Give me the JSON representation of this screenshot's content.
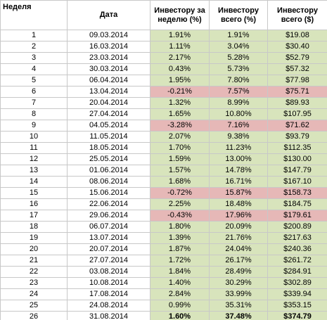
{
  "table": {
    "header": [
      "Неделя",
      "Дата",
      "Инвестору за неделю (%)",
      "Инвестору всего (%)",
      "Инвестору всего ($)"
    ],
    "rows": [
      [
        "1",
        "09.03.2014",
        "1.91%",
        "1.91%",
        "$19.08"
      ],
      [
        "2",
        "16.03.2014",
        "1.11%",
        "3.04%",
        "$30.40"
      ],
      [
        "3",
        "23.03.2014",
        "2.17%",
        "5.28%",
        "$52.79"
      ],
      [
        "4",
        "30.03.2014",
        "0.43%",
        "5.73%",
        "$57.32"
      ],
      [
        "5",
        "06.04.2014",
        "1.95%",
        "7.80%",
        "$77.98"
      ],
      [
        "6",
        "13.04.2014",
        "-0.21%",
        "7.57%",
        "$75.71"
      ],
      [
        "7",
        "20.04.2014",
        "1.32%",
        "8.99%",
        "$89.93"
      ],
      [
        "8",
        "27.04.2014",
        "1.65%",
        "10.80%",
        "$107.95"
      ],
      [
        "9",
        "04.05.2014",
        "-3.28%",
        "7.16%",
        "$71.62"
      ],
      [
        "10",
        "11.05.2014",
        "2.07%",
        "9.38%",
        "$93.79"
      ],
      [
        "11",
        "18.05.2014",
        "1.70%",
        "11.23%",
        "$112.35"
      ],
      [
        "12",
        "25.05.2014",
        "1.59%",
        "13.00%",
        "$130.00"
      ],
      [
        "13",
        "01.06.2014",
        "1.57%",
        "14.78%",
        "$147.79"
      ],
      [
        "14",
        "08.06.2014",
        "1.68%",
        "16.71%",
        "$167.10"
      ],
      [
        "15",
        "15.06.2014",
        "-0.72%",
        "15.87%",
        "$158.73"
      ],
      [
        "16",
        "22.06.2014",
        "2.25%",
        "18.48%",
        "$184.75"
      ],
      [
        "17",
        "29.06.2014",
        "-0.43%",
        "17.96%",
        "$179.61"
      ],
      [
        "18",
        "06.07.2014",
        "1.80%",
        "20.09%",
        "$200.89"
      ],
      [
        "19",
        "13.07.2014",
        "1.39%",
        "21.76%",
        "$217.63"
      ],
      [
        "20",
        "20.07.2014",
        "1.87%",
        "24.04%",
        "$240.36"
      ],
      [
        "21",
        "27.07.2014",
        "1.72%",
        "26.17%",
        "$261.72"
      ],
      [
        "22",
        "03.08.2014",
        "1.84%",
        "28.49%",
        "$284.91"
      ],
      [
        "23",
        "10.08.2014",
        "1.40%",
        "30.29%",
        "$302.89"
      ],
      [
        "24",
        "17.08.2014",
        "2.84%",
        "33.99%",
        "$339.94"
      ],
      [
        "25",
        "24.08.2014",
        "0.99%",
        "35.31%",
        "$353.15"
      ],
      [
        "26",
        "31.08.2014",
        "1.60%",
        "37.48%",
        "$374.79"
      ]
    ]
  }
}
